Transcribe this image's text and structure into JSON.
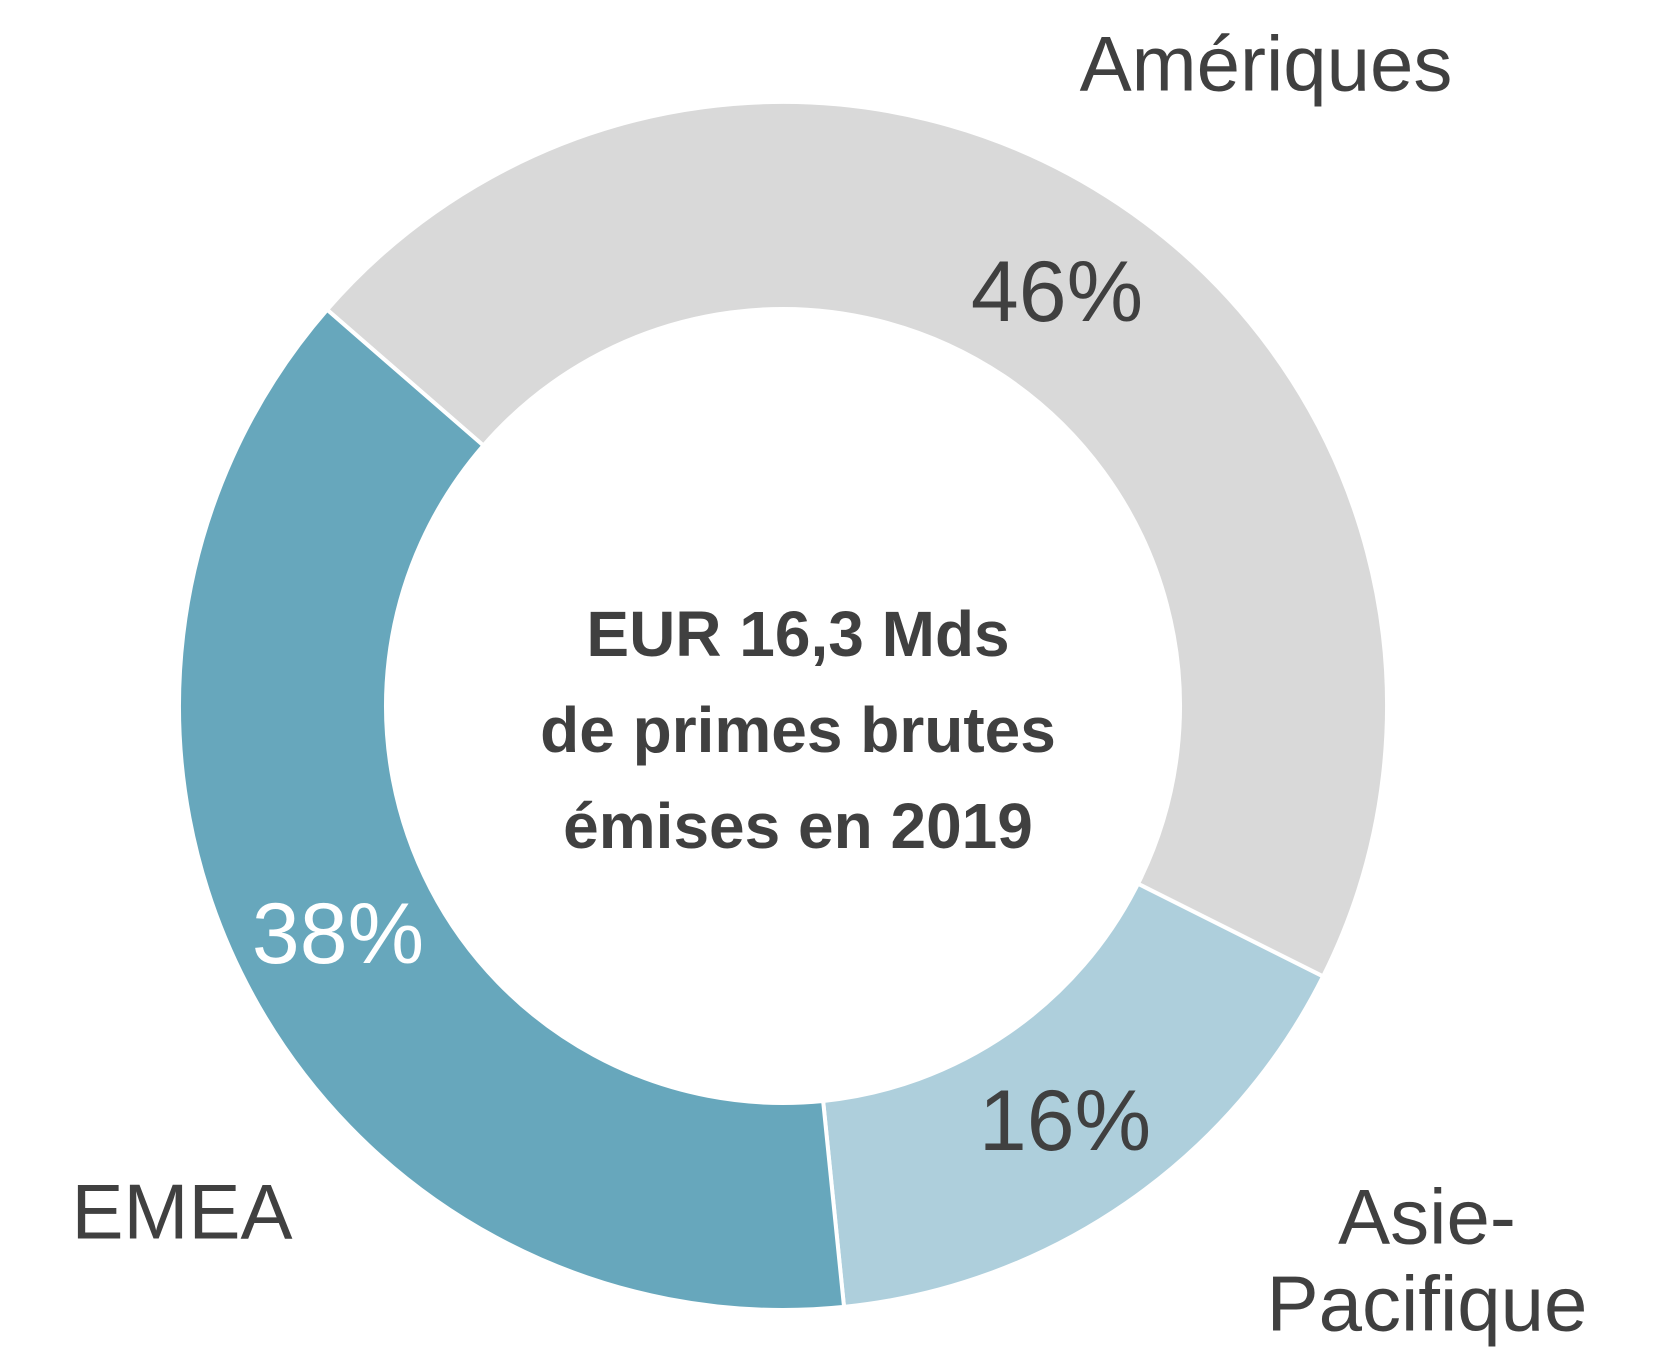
{
  "chart_data": {
    "type": "donut",
    "center_label": "EUR 16,3 Mds\nde primes brutes\némises en 2019",
    "categories": [
      "Amériques",
      "Asie-\nPacifique",
      "EMEA"
    ],
    "values": [
      46,
      16,
      38
    ],
    "value_labels": [
      "46%",
      "16%",
      "38%"
    ],
    "colors": [
      "#d9d9d9",
      "#aecfdc",
      "#67a7bc"
    ]
  }
}
